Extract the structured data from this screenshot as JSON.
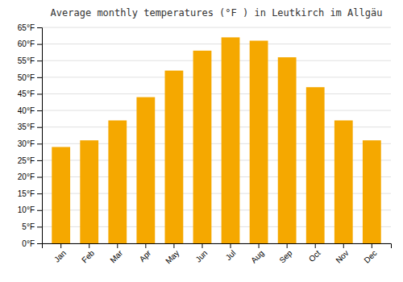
{
  "chart_data": {
    "type": "bar",
    "title": "Average monthly temperatures (°F ) in Leutkirch im Allgäu",
    "categories": [
      "Jan",
      "Feb",
      "Mar",
      "Apr",
      "May",
      "Jun",
      "Jul",
      "Aug",
      "Sep",
      "Oct",
      "Nov",
      "Dec"
    ],
    "values": [
      29,
      31,
      37,
      44,
      52,
      58,
      62,
      61,
      56,
      47,
      37,
      31
    ],
    "color": "#F5A800",
    "ylim": [
      0,
      65
    ],
    "yticks": [
      {
        "value": 0,
        "label": "0°F"
      },
      {
        "value": 5,
        "label": "5°F"
      },
      {
        "value": 10,
        "label": "10°F"
      },
      {
        "value": 15,
        "label": "15°F"
      },
      {
        "value": 20,
        "label": "20°F"
      },
      {
        "value": 25,
        "label": "25°F"
      },
      {
        "value": 30,
        "label": "30°F"
      },
      {
        "value": 35,
        "label": "35°F"
      },
      {
        "value": 40,
        "label": "40°F"
      },
      {
        "value": 45,
        "label": "45°F"
      },
      {
        "value": 50,
        "label": "50°F"
      },
      {
        "value": 55,
        "label": "55°F"
      },
      {
        "value": 60,
        "label": "60°F"
      },
      {
        "value": 65,
        "label": "65°F"
      }
    ],
    "grid": true
  }
}
